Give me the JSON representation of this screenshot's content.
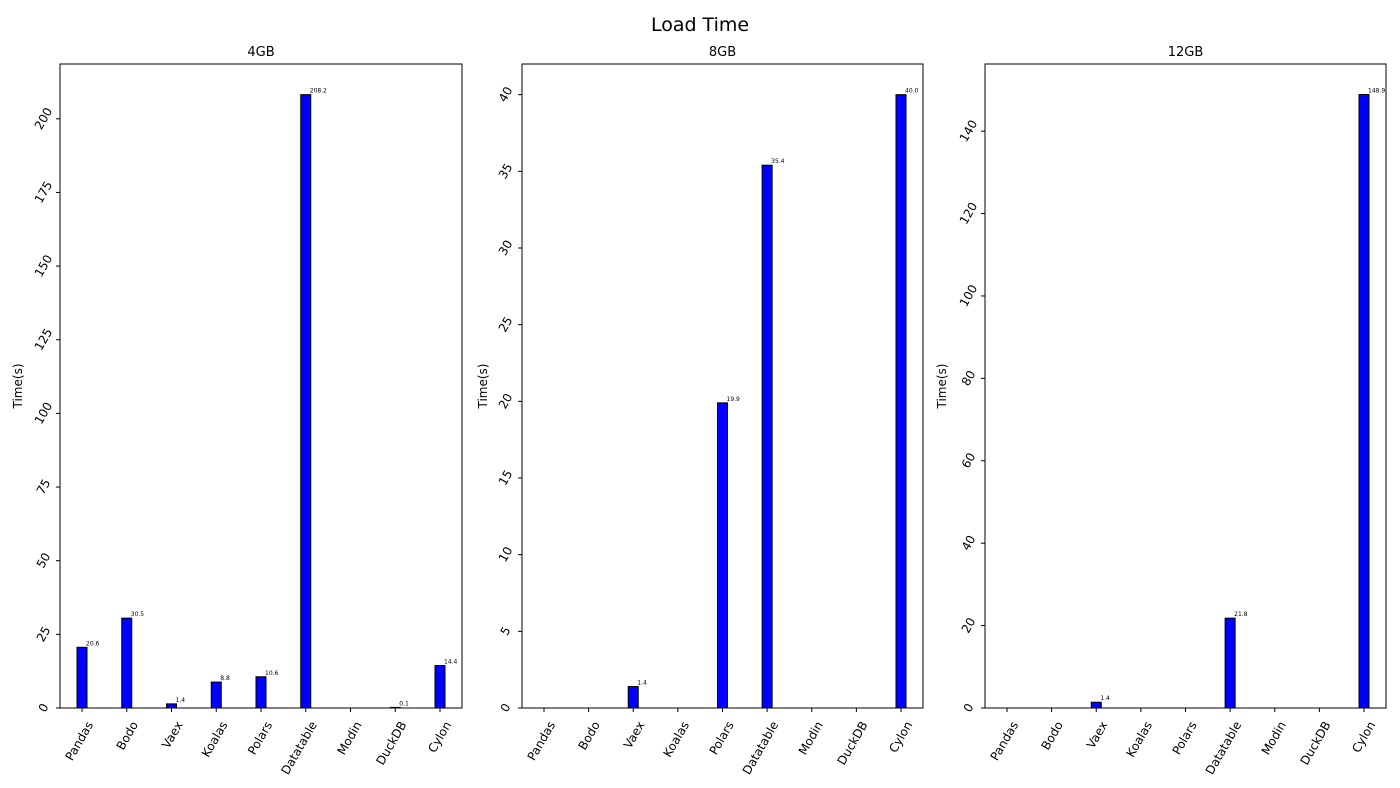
{
  "figure": {
    "title": "Load Time"
  },
  "colors": {
    "bar_fill": "#0000ff",
    "bar_stroke": "#000000",
    "axes": "#000000",
    "background": "#ffffff"
  },
  "chart_data": [
    {
      "type": "bar",
      "title": "4GB",
      "xlabel": "",
      "ylabel": "Time(s)",
      "categories": [
        "Pandas",
        "Bodo",
        "Vaex",
        "Koalas",
        "Polars",
        "Datatable",
        "Modin",
        "DuckDB",
        "Cylon"
      ],
      "values": [
        20.6,
        30.5,
        1.4,
        8.8,
        10.6,
        208.2,
        null,
        0.1,
        14.4
      ],
      "value_labels": [
        "20.6",
        "30.5",
        "1.4",
        "8.8",
        "10.6",
        "208.2",
        "",
        "0.1",
        "14.4"
      ],
      "yticks": [
        0,
        25,
        50,
        75,
        100,
        125,
        150,
        175,
        200
      ],
      "ylim": [
        0,
        218.6
      ],
      "grid": false,
      "legend": "none"
    },
    {
      "type": "bar",
      "title": "8GB",
      "xlabel": "",
      "ylabel": "Time(s)",
      "categories": [
        "Pandas",
        "Bodo",
        "Vaex",
        "Koalas",
        "Polars",
        "Datatable",
        "Modin",
        "DuckDB",
        "Cylon"
      ],
      "values": [
        null,
        null,
        1.4,
        null,
        19.9,
        35.4,
        null,
        null,
        40.0
      ],
      "value_labels": [
        "",
        "",
        "1.4",
        "",
        "19.9",
        "35.4",
        "",
        "",
        "40.0"
      ],
      "yticks": [
        0,
        5,
        10,
        15,
        20,
        25,
        30,
        35,
        40
      ],
      "ylim": [
        0,
        42
      ],
      "grid": false,
      "legend": "none"
    },
    {
      "type": "bar",
      "title": "12GB",
      "xlabel": "",
      "ylabel": "Time(s)",
      "categories": [
        "Pandas",
        "Bodo",
        "Vaex",
        "Koalas",
        "Polars",
        "Datatable",
        "Modin",
        "DuckDB",
        "Cylon"
      ],
      "values": [
        null,
        null,
        1.4,
        null,
        null,
        21.8,
        null,
        null,
        148.9
      ],
      "value_labels": [
        "",
        "",
        "1.4",
        "",
        "",
        "21.8",
        "",
        "",
        "148.9"
      ],
      "yticks": [
        0,
        20,
        40,
        60,
        80,
        100,
        120,
        140
      ],
      "ylim": [
        0,
        156.3
      ],
      "grid": false,
      "legend": "none"
    }
  ]
}
